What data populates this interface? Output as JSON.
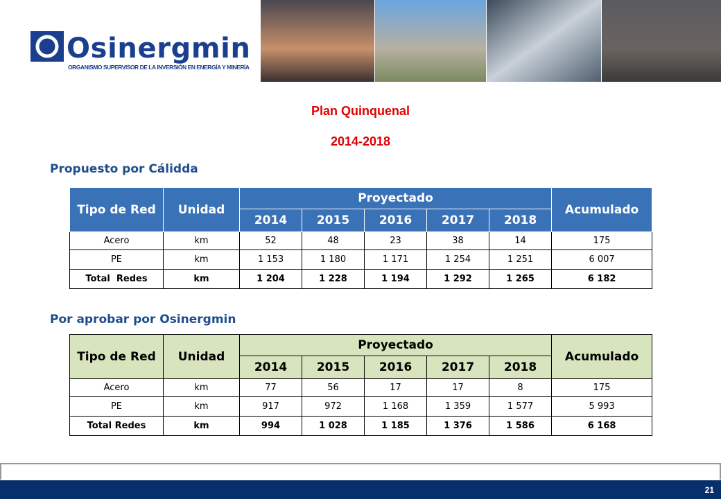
{
  "header": {
    "brand": "Osinergmin",
    "tagline": "ORGANISMO SUPERVISOR DE LA INVERSIÓN EN ENERGÍA Y MINERÍA"
  },
  "title": "Plan Quinquenal",
  "period": "2014-2018",
  "tables": [
    {
      "heading": "Propuesto por Cálidda",
      "columns": {
        "tipo": "Tipo de Red",
        "unidad": "Unidad",
        "proyectado": "Proyectado",
        "years": [
          "2014",
          "2015",
          "2016",
          "2017",
          "2018"
        ],
        "acumulado": "Acumulado"
      },
      "rows": [
        [
          "Acero",
          "km",
          "52",
          "48",
          "23",
          "38",
          "14",
          "175"
        ],
        [
          "PE",
          "km",
          "1 153",
          "1 180",
          "1 171",
          "1 254",
          "1 251",
          "6 007"
        ],
        [
          "Total  Redes",
          "km",
          "1 204",
          "1 228",
          "1 194",
          "1 292",
          "1 265",
          "6 182"
        ]
      ]
    },
    {
      "heading": "Por aprobar por Osinergmin",
      "columns": {
        "tipo": "Tipo de Red",
        "unidad": "Unidad",
        "proyectado": "Proyectado",
        "years": [
          "2014",
          "2015",
          "2016",
          "2017",
          "2018"
        ],
        "acumulado": "Acumulado"
      },
      "rows": [
        [
          "Acero",
          "km",
          "77",
          "56",
          "17",
          "17",
          "8",
          "175"
        ],
        [
          "PE",
          "km",
          "917",
          "972",
          "1 168",
          "1 359",
          "1 577",
          "5 993"
        ],
        [
          "Total Redes",
          "km",
          "994",
          "1 028",
          "1 185",
          "1 376",
          "1 586",
          "6 168"
        ]
      ]
    }
  ],
  "page_number": "21"
}
